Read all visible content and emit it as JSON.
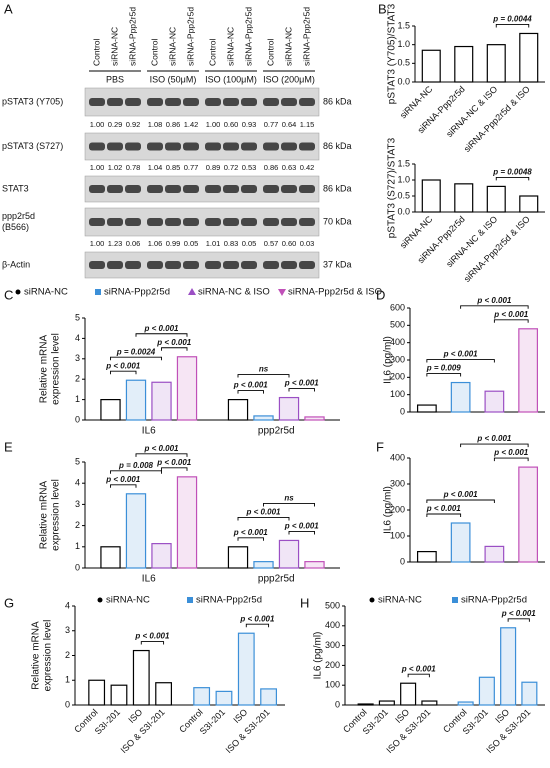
{
  "panel_a": {
    "panel_label": "A",
    "lanes": [
      "Control",
      "siRNA-NC",
      "siRNA-Ppp2r5d"
    ],
    "treatments": [
      "PBS",
      "ISO (50μM)",
      "ISO (100μM)",
      "ISO (200μM)"
    ],
    "rows": [
      {
        "label": [
          "pSTAT3 (Y705)"
        ],
        "kda": "86 kDa",
        "quant": [
          "1.00",
          "0.29",
          "0.92",
          "1.08",
          "0.86",
          "1.42",
          "1.00",
          "0.60",
          "0.93",
          "0.77",
          "0.64",
          "1.15"
        ]
      },
      {
        "label": [
          "pSTAT3 (S727)"
        ],
        "kda": "86 kDa",
        "quant": [
          "1.00",
          "1.02",
          "0.78",
          "1.04",
          "0.85",
          "0.77",
          "0.89",
          "0.72",
          "0.53",
          "0.86",
          "0.63",
          "0.42"
        ]
      },
      {
        "label": [
          "STAT3"
        ],
        "kda": "86 kDa"
      },
      {
        "label": [
          "ppp2r5d",
          "(B566)"
        ],
        "kda": "70 kDa",
        "quant": [
          "1.00",
          "1.23",
          "0.06",
          "1.06",
          "0.99",
          "0.05",
          "1.01",
          "0.83",
          "0.05",
          "0.57",
          "0.60",
          "0.03"
        ]
      },
      {
        "label": [
          "β-Actin"
        ],
        "kda": "37 kDa"
      }
    ]
  },
  "chart_data": [
    {
      "type": "bar",
      "panel_label": "B",
      "ylabel": [
        "pSTAT3 (Y705)/STAT3"
      ],
      "categories": [
        "siRNA-NC",
        "siRNA-Ppp2r5d",
        "siRNA-NC & ISO",
        "siRNA-Ppp2r5d & ISO"
      ],
      "values": [
        0.85,
        0.95,
        1.0,
        1.3
      ],
      "color": "#000000",
      "ylim": [
        0,
        1.5
      ],
      "yticks": [
        {
          "value": 0,
          "label": "0.0"
        },
        {
          "value": 0.5,
          "label": "0.5"
        },
        {
          "value": 1,
          "label": "1.0"
        },
        {
          "value": 1.5,
          "label": "1.5"
        }
      ],
      "annotations": [
        "p = 0.0044"
      ]
    },
    {
      "type": "bar",
      "ylabel": [
        "pSTAT3 (S727)/STAT3"
      ],
      "categories": [
        "siRNA-NC",
        "siRNA-Ppp2r5d",
        "siRNA-NC & ISO",
        "siRNA-Ppp2r5d & ISO"
      ],
      "values": [
        1.0,
        0.88,
        0.8,
        0.5
      ],
      "color": "#000000",
      "ylim": [
        0,
        1.5
      ],
      "yticks": [
        {
          "value": 0,
          "label": "0.0"
        },
        {
          "value": 0.5,
          "label": "0.5"
        },
        {
          "value": 1,
          "label": "1.0"
        },
        {
          "value": 1.5,
          "label": "1.5"
        }
      ],
      "annotations": [
        "p = 0.0048"
      ]
    },
    {
      "type": "bar",
      "panel_label": "C",
      "ylabel": [
        "Relative mRNA",
        "expression level"
      ],
      "categories": [
        "IL6",
        "ppp2r5d"
      ],
      "series": [
        {
          "name": "siRNA-NC",
          "color": "#000000",
          "values": [
            1.0,
            1.0
          ]
        },
        {
          "name": "siRNA-Ppp2r5d",
          "color": "#3b8fd8",
          "values": [
            1.95,
            0.2
          ]
        },
        {
          "name": "siRNA-NC & ISO",
          "color": "#9b4fc4",
          "values": [
            1.85,
            1.1
          ]
        },
        {
          "name": "siRNA-Ppp2r5d & ISO",
          "color": "#c050b8",
          "values": [
            3.1,
            0.15
          ]
        }
      ],
      "ylim": [
        0,
        5
      ],
      "yticks": [
        0,
        1,
        2,
        3,
        4,
        5
      ],
      "annotations": [
        "p < 0.001",
        "p = 0.0024",
        "p < 0.001",
        "p < 0.001",
        "p < 0.001",
        "ns",
        "p < 0.001"
      ]
    },
    {
      "type": "bar",
      "panel_label": "D",
      "ylabel": [
        "IL6 (pg/ml)"
      ],
      "values": [
        40,
        170,
        120,
        480
      ],
      "colors": [
        "#000000",
        "#3b8fd8",
        "#9b4fc4",
        "#c050b8"
      ],
      "ylim": [
        0,
        600
      ],
      "yticks": [
        0,
        100,
        200,
        300,
        400,
        500,
        600
      ],
      "annotations": [
        "p = 0.009",
        "p < 0.001",
        "p < 0.001",
        "p < 0.001"
      ]
    },
    {
      "type": "bar",
      "panel_label": "E",
      "ylabel": [
        "Relative mRNA",
        "expression level"
      ],
      "categories": [
        "IL6",
        "ppp2r5d"
      ],
      "series": [
        {
          "color": "#000000",
          "values": [
            1.0,
            1.0
          ]
        },
        {
          "color": "#3b8fd8",
          "values": [
            3.5,
            0.3
          ]
        },
        {
          "color": "#9b4fc4",
          "values": [
            1.15,
            1.3
          ]
        },
        {
          "color": "#c050b8",
          "values": [
            4.3,
            0.3
          ]
        }
      ],
      "ylim": [
        0,
        5
      ],
      "yticks": [
        0,
        1,
        2,
        3,
        4,
        5
      ],
      "annotations": [
        "p < 0.001",
        "p = 0.008",
        "p < 0.001",
        "p < 0.001",
        "p < 0.001",
        "p < 0.001",
        "ns",
        "p < 0.001"
      ]
    },
    {
      "type": "bar",
      "panel_label": "F",
      "ylabel": [
        "IL6 (pg/ml)"
      ],
      "values": [
        40,
        150,
        60,
        365
      ],
      "colors": [
        "#000000",
        "#3b8fd8",
        "#9b4fc4",
        "#c050b8"
      ],
      "ylim": [
        0,
        400
      ],
      "yticks": [
        0,
        100,
        200,
        300,
        400
      ],
      "annotations": [
        "p < 0.001",
        "p < 0.001",
        "p < 0.001",
        "p < 0.001"
      ]
    },
    {
      "type": "bar",
      "panel_label": "G",
      "ylabel": [
        "Relative mRNA",
        "expression level"
      ],
      "cluster": "series",
      "categories": [
        "Control",
        "S3I-201",
        "ISO",
        "ISO & S3I-201"
      ],
      "series": [
        {
          "name": "siRNA-NC",
          "color": "#000000",
          "values": [
            1.0,
            0.8,
            2.2,
            0.9
          ]
        },
        {
          "name": "siRNA-Ppp2r5d",
          "color": "#3b8fd8",
          "values": [
            0.7,
            0.55,
            2.9,
            0.65
          ]
        }
      ],
      "ylim": [
        0,
        4
      ],
      "yticks": [
        0,
        1,
        2,
        3,
        4
      ],
      "annotations": [
        "p < 0.001",
        "p < 0.001"
      ]
    },
    {
      "type": "bar",
      "panel_label": "H",
      "ylabel": [
        "IL6 (pg/ml)"
      ],
      "cluster": "series",
      "categories": [
        "Control",
        "S3I-201",
        "ISO",
        "ISO & S3I-201"
      ],
      "series": [
        {
          "name": "siRNA-NC",
          "color": "#000000",
          "values": [
            5,
            20,
            110,
            20
          ]
        },
        {
          "name": "siRNA-Ppp2r5d",
          "color": "#3b8fd8",
          "values": [
            15,
            140,
            390,
            115
          ]
        }
      ],
      "ylim": [
        0,
        500
      ],
      "yticks": [
        0,
        100,
        200,
        300,
        400,
        500
      ],
      "annotations": [
        "p < 0.001",
        "p < 0.001"
      ]
    }
  ]
}
